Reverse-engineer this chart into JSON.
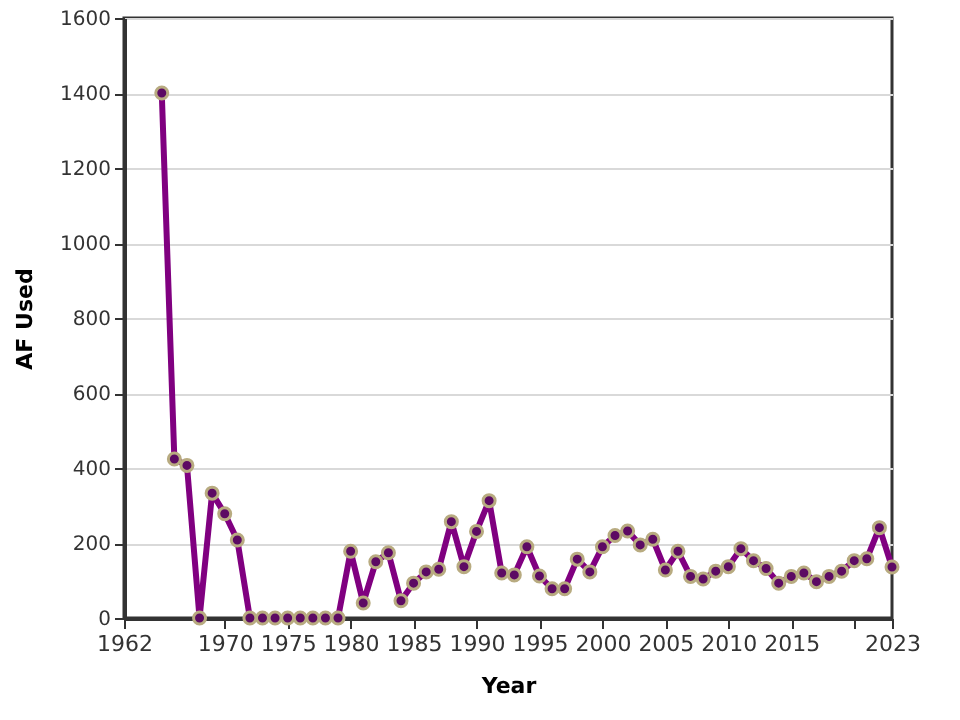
{
  "chart_data": {
    "type": "line",
    "xlabel": "Year",
    "ylabel": "AF Used",
    "x": [
      1965,
      1966,
      1967,
      1968,
      1969,
      1970,
      1971,
      1972,
      1973,
      1974,
      1975,
      1976,
      1977,
      1978,
      1979,
      1980,
      1981,
      1982,
      1983,
      1984,
      1985,
      1986,
      1987,
      1988,
      1989,
      1990,
      1991,
      1992,
      1993,
      1994,
      1995,
      1996,
      1997,
      1998,
      1999,
      2000,
      2001,
      2002,
      2003,
      2004,
      2005,
      2006,
      2007,
      2008,
      2009,
      2010,
      2011,
      2012,
      2013,
      2014,
      2015,
      2016,
      2017,
      2018,
      2019,
      2020,
      2021,
      2022,
      2023
    ],
    "series": [
      {
        "color": "#800080",
        "values": [
          1400,
          424,
          407,
          0,
          333,
          278,
          208,
          0,
          0,
          0,
          0,
          0,
          0,
          0,
          0,
          178,
          40,
          150,
          174,
          46,
          93,
          123,
          130,
          257,
          137,
          231,
          313,
          120,
          115,
          190,
          112,
          78,
          78,
          157,
          123,
          190,
          220,
          232,
          195,
          210,
          128,
          178,
          111,
          104,
          125,
          137,
          185,
          153,
          132,
          93,
          111,
          120,
          97,
          111,
          125,
          153,
          158,
          241,
          136
        ]
      }
    ],
    "xlim": [
      1962,
      2023
    ],
    "xticks": [
      1962,
      1970,
      1975,
      1980,
      1985,
      1990,
      1995,
      2000,
      2005,
      2010,
      2015,
      {
        "value": 2020,
        "label": null
      },
      {
        "value": 2023,
        "label": "2023"
      }
    ],
    "ylim": [
      0,
      1600
    ],
    "yticks": [
      0,
      200,
      400,
      600,
      800,
      1000,
      1200,
      1400,
      1600
    ],
    "grid": "y",
    "marker": "circle",
    "line_style": "solid"
  }
}
